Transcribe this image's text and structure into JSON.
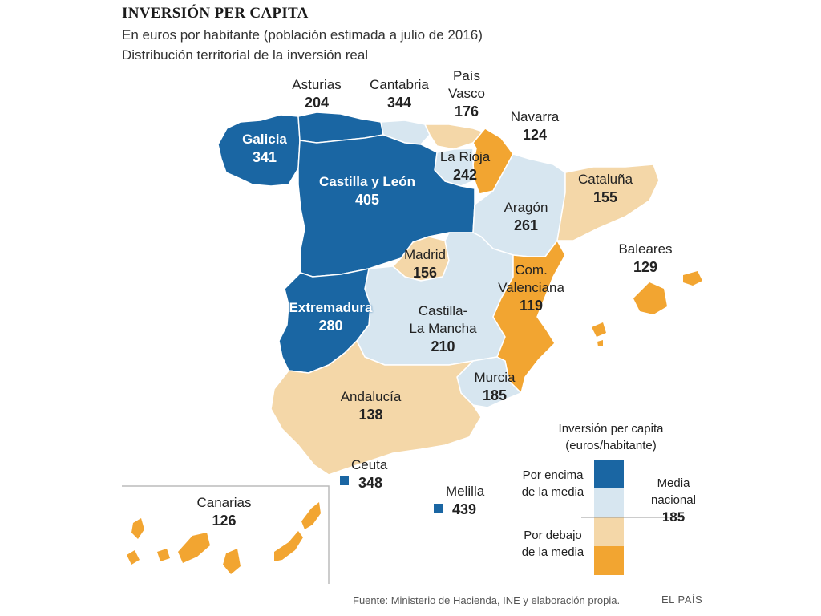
{
  "title": "INVERSIÓN PER CAPITA",
  "subtitle_1": "En euros por habitante (población estimada a julio de 2016)",
  "subtitle_2": "Distribución territorial de la inversión real",
  "colors": {
    "above_high": "#1a66a3",
    "above_low": "#d7e6f0",
    "below_high": "#f4d7a8",
    "below_low": "#f2a531"
  },
  "regions": [
    {
      "name": "Asturias",
      "value": "204",
      "category": "above"
    },
    {
      "name": "Cantabria",
      "value": "344",
      "category": "above"
    },
    {
      "name": "País Vasco",
      "name_l1": "País",
      "name_l2": "Vasco",
      "value": "176",
      "category": "below"
    },
    {
      "name": "Navarra",
      "value": "124",
      "category": "below"
    },
    {
      "name": "Galicia",
      "value": "341",
      "category": "above"
    },
    {
      "name": "La Rioja",
      "value": "242",
      "category": "above"
    },
    {
      "name": "Castilla y León",
      "value": "405",
      "category": "above"
    },
    {
      "name": "Cataluña",
      "value": "155",
      "category": "below"
    },
    {
      "name": "Aragón",
      "value": "261",
      "category": "above"
    },
    {
      "name": "Baleares",
      "value": "129",
      "category": "below"
    },
    {
      "name": "Madrid",
      "value": "156",
      "category": "below"
    },
    {
      "name": "Com. Valenciana",
      "name_l1": "Com.",
      "name_l2": "Valenciana",
      "value": "119",
      "category": "below"
    },
    {
      "name": "Extremadura",
      "value": "280",
      "category": "above"
    },
    {
      "name": "Castilla-La Mancha",
      "name_l1": "Castilla-",
      "name_l2": "La Mancha",
      "value": "210",
      "category": "above"
    },
    {
      "name": "Murcia",
      "value": "185",
      "category": "average"
    },
    {
      "name": "Andalucía",
      "value": "138",
      "category": "below"
    },
    {
      "name": "Ceuta",
      "value": "348",
      "category": "above"
    },
    {
      "name": "Melilla",
      "value": "439",
      "category": "above"
    },
    {
      "name": "Canarias",
      "value": "126",
      "category": "below"
    }
  ],
  "legend": {
    "title_l1": "Inversión per capita",
    "title_l2": "(euros/habitante)",
    "above_l1": "Por encima",
    "above_l2": "de la media",
    "below_l1": "Por debajo",
    "below_l2": "de la media",
    "avg_l1": "Media",
    "avg_l2": "nacional",
    "avg_value": "185"
  },
  "source": "Fuente: Ministerio de Hacienda, INE y elaboración propia.",
  "brand": "EL PAÍS"
}
